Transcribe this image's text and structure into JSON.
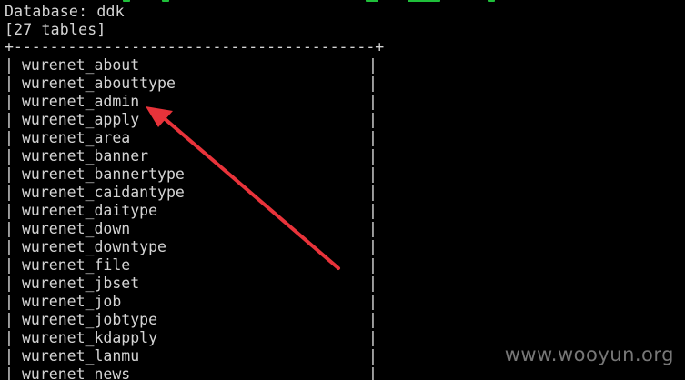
{
  "terminal": {
    "database_line": "Database: ddk",
    "table_count": "[27 tables]",
    "border": "+----------------------------------------+",
    "tables": [
      "wurenet_about",
      "wurenet_abouttype",
      "wurenet_admin",
      "wurenet_apply",
      "wurenet_area",
      "wurenet_banner",
      "wurenet_bannertype",
      "wurenet_caidantype",
      "wurenet_daitype",
      "wurenet_down",
      "wurenet_downtype",
      "wurenet_file",
      "wurenet_jbset",
      "wurenet_job",
      "wurenet_jobtype",
      "wurenet_kdapply",
      "wurenet_lanmu",
      "wurenet_news"
    ],
    "highlighted_table": "wurenet_admin"
  },
  "colors": {
    "background": "#000000",
    "text": "#d4d4d4",
    "arrow": "#e8333a",
    "green_bar": "#1fbf3a",
    "watermark": "#8c8c8c"
  },
  "watermark": "www.wooyun.org"
}
